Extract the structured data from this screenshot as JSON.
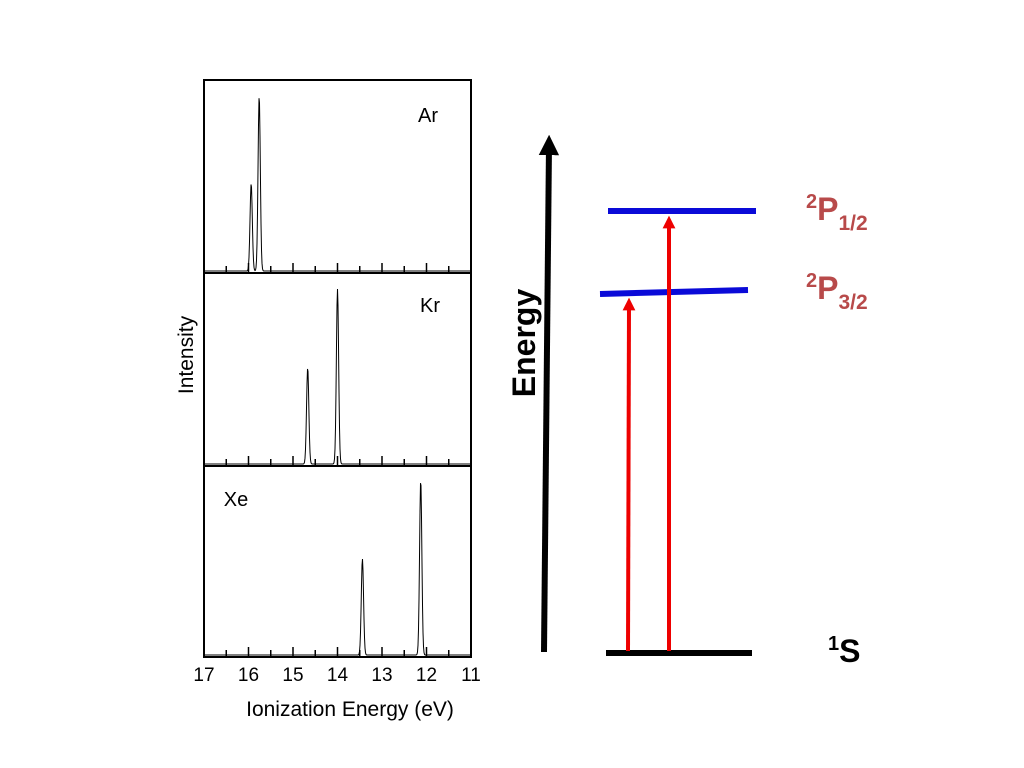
{
  "spectra": {
    "ylabel": "Intensity",
    "xlabel": "Ionization Energy (eV)",
    "x_ticks": [
      "17",
      "16",
      "15",
      "14",
      "13",
      "12",
      "11"
    ],
    "x_range": [
      17,
      11
    ],
    "panels": [
      {
        "label": "Ar",
        "peaks": [
          {
            "energy": 15.94,
            "relative_height": 0.5
          },
          {
            "energy": 15.76,
            "relative_height": 1.0
          }
        ]
      },
      {
        "label": "Kr",
        "peaks": [
          {
            "energy": 14.67,
            "relative_height": 0.55
          },
          {
            "energy": 14.0,
            "relative_height": 1.0
          }
        ]
      },
      {
        "label": "Xe",
        "peaks": [
          {
            "energy": 13.44,
            "relative_height": 0.55
          },
          {
            "energy": 12.13,
            "relative_height": 1.0
          }
        ]
      }
    ]
  },
  "energy_diagram": {
    "axis_label": "Energy",
    "levels": [
      {
        "id": "upper",
        "term_sup": "2",
        "term_letter": "P",
        "term_sub": "1/2",
        "color": "#0a0ad8"
      },
      {
        "id": "middle",
        "term_sup": "2",
        "term_letter": "P",
        "term_sub": "3/2",
        "color": "#0a0ad8"
      },
      {
        "id": "ground",
        "term_sup": "1",
        "term_letter": "S",
        "term_sub": "",
        "color": "#000000"
      }
    ],
    "term_color_excited": "#b84a4a",
    "term_color_ground": "#000000",
    "transition_color": "#ee0000",
    "transitions": [
      {
        "from": "ground",
        "to": "middle"
      },
      {
        "from": "ground",
        "to": "upper"
      }
    ]
  }
}
